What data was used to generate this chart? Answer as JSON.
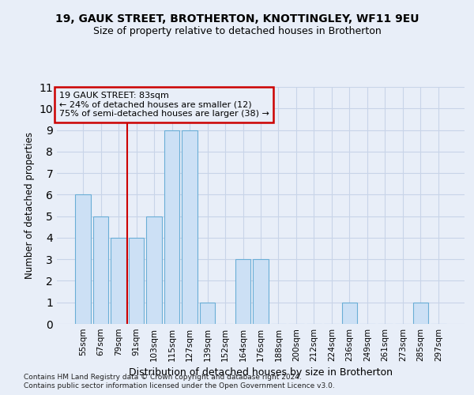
{
  "title1": "19, GAUK STREET, BROTHERTON, KNOTTINGLEY, WF11 9EU",
  "title2": "Size of property relative to detached houses in Brotherton",
  "xlabel": "Distribution of detached houses by size in Brotherton",
  "ylabel": "Number of detached properties",
  "categories": [
    "55sqm",
    "67sqm",
    "79sqm",
    "91sqm",
    "103sqm",
    "115sqm",
    "127sqm",
    "139sqm",
    "152sqm",
    "164sqm",
    "176sqm",
    "188sqm",
    "200sqm",
    "212sqm",
    "224sqm",
    "236sqm",
    "249sqm",
    "261sqm",
    "273sqm",
    "285sqm",
    "297sqm"
  ],
  "values": [
    6,
    5,
    4,
    4,
    5,
    9,
    9,
    1,
    0,
    3,
    3,
    0,
    0,
    0,
    0,
    1,
    0,
    0,
    0,
    1,
    0
  ],
  "bar_color": "#cce0f5",
  "bar_edge_color": "#6aaed6",
  "grid_color": "#c8d4e8",
  "annotation_text": "19 GAUK STREET: 83sqm\n← 24% of detached houses are smaller (12)\n75% of semi-detached houses are larger (38) →",
  "vline_color": "#cc0000",
  "box_edge_color": "#cc0000",
  "ylim": [
    0,
    11
  ],
  "yticks": [
    0,
    1,
    2,
    3,
    4,
    5,
    6,
    7,
    8,
    9,
    10,
    11
  ],
  "footer1": "Contains HM Land Registry data © Crown copyright and database right 2024.",
  "footer2": "Contains public sector information licensed under the Open Government Licence v3.0.",
  "bg_color": "#e8eef8",
  "title1_fontsize": 10,
  "title2_fontsize": 9,
  "xlabel_fontsize": 9,
  "ylabel_fontsize": 8.5,
  "tick_fontsize": 7.5,
  "footer_fontsize": 6.5
}
